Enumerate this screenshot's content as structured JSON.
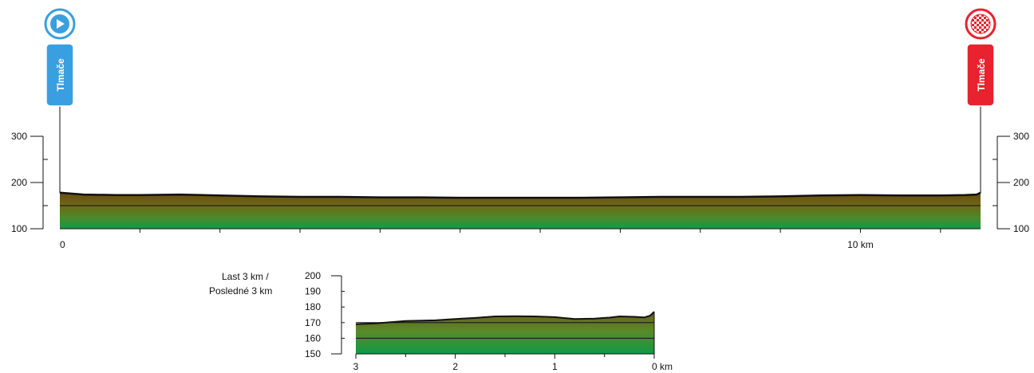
{
  "chart_data": [
    {
      "type": "area",
      "x_unit_label": "km",
      "y_ticks": [
        100,
        200,
        300
      ],
      "ylim": [
        100,
        300
      ],
      "xlim": [
        0,
        11.5
      ],
      "x_tick_labels": [
        {
          "x": 0,
          "label": "0"
        },
        {
          "x": 10,
          "label": "10 km"
        }
      ],
      "x_minor_ticks": [
        1,
        2,
        3,
        4,
        5,
        6,
        7,
        8,
        9,
        10,
        11
      ],
      "base_band": 150,
      "series": [
        {
          "x": [
            0,
            0.3,
            0.7,
            1.0,
            1.5,
            2.0,
            2.5,
            3.0,
            3.5,
            4.0,
            4.5,
            5.0,
            5.5,
            6.0,
            6.5,
            7.0,
            7.5,
            8.0,
            8.5,
            9.0,
            9.5,
            10.0,
            10.5,
            11.0,
            11.3,
            11.45,
            11.5
          ],
          "values": [
            178,
            174,
            173,
            173,
            174,
            172,
            170,
            169,
            169,
            168,
            168,
            167,
            167,
            167,
            167,
            168,
            169,
            169,
            169,
            170,
            172,
            173,
            172,
            172,
            173,
            174,
            178
          ]
        }
      ],
      "start": {
        "label": "Tlmače",
        "color": "#3a9fe0"
      },
      "finish": {
        "label": "Tlmače",
        "color": "#e8222e"
      }
    },
    {
      "type": "area",
      "caption_line1": "Last 3 km /",
      "caption_line2": "Posledné 3 km",
      "y_ticks": [
        150,
        160,
        170,
        180,
        190,
        200
      ],
      "ylim": [
        150,
        200
      ],
      "x_tick_labels": [
        {
          "x": 3,
          "label": "3"
        },
        {
          "x": 2,
          "label": "2"
        },
        {
          "x": 1,
          "label": "1"
        },
        {
          "x": 0,
          "label": "0 km"
        }
      ],
      "x_minor_ticks": [
        2.5,
        1.5,
        0.5
      ],
      "grid_lines": [
        160,
        170
      ],
      "series": [
        {
          "x": [
            3,
            2.8,
            2.5,
            2.2,
            2.0,
            1.8,
            1.6,
            1.4,
            1.2,
            1.0,
            0.8,
            0.6,
            0.45,
            0.35,
            0.2,
            0.1,
            0.04,
            0
          ],
          "values": [
            169,
            169.5,
            171,
            171.5,
            172.3,
            173,
            174,
            174.1,
            174,
            173.5,
            172.3,
            172.6,
            173.2,
            174,
            173.7,
            173.3,
            174.5,
            177
          ]
        }
      ]
    }
  ],
  "colors": {
    "top": "#6b4a12",
    "mid": "#7f8c1c",
    "bottom": "#0f9a47",
    "outline": "#111111"
  },
  "icons": {
    "start": "play-icon",
    "finish": "checkered-flag-icon"
  }
}
